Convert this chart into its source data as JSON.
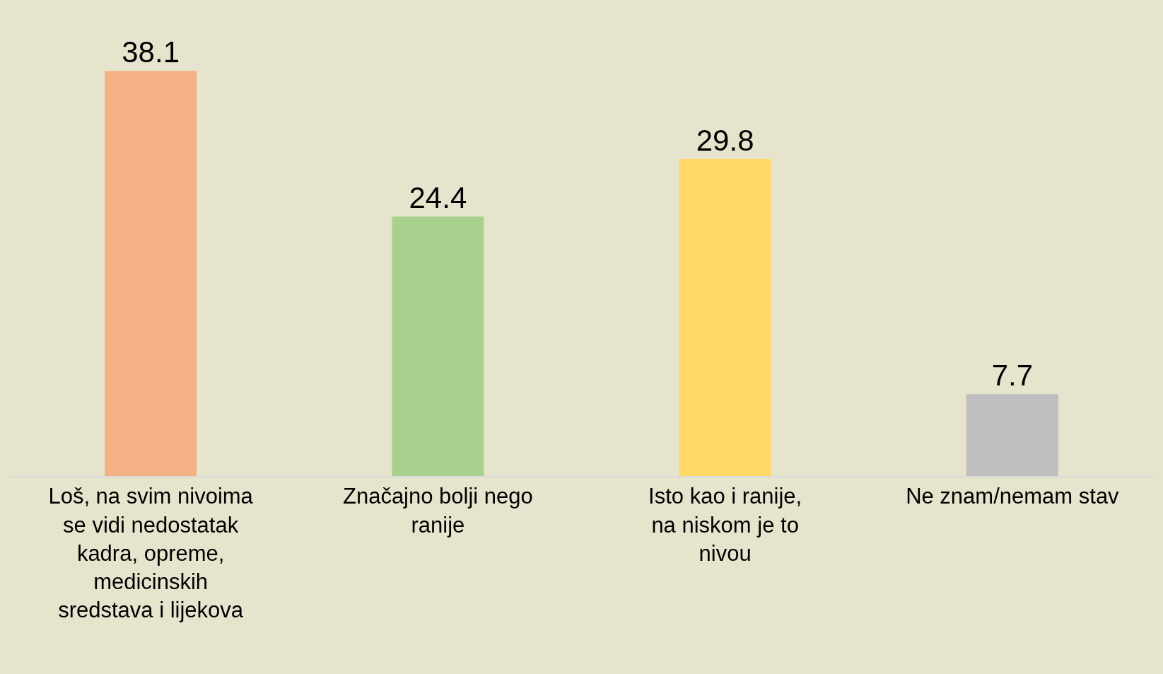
{
  "chart_data": {
    "type": "bar",
    "categories": [
      "Loš, na svim nivoima se vidi nedostatak kadra, opreme, medicinskih sredstava i lijekova",
      "Značajno bolji nego ranije",
      "Isto kao i ranije, na niskom je to nivou",
      "Ne znam/nemam stav"
    ],
    "values": [
      38.1,
      24.4,
      29.8,
      7.7
    ],
    "colors": [
      "#f4b183",
      "#a9d18e",
      "#ffd966",
      "#bfbfbf"
    ],
    "data_labels": true,
    "grid": false,
    "legend": false,
    "tick_labels": "x"
  }
}
